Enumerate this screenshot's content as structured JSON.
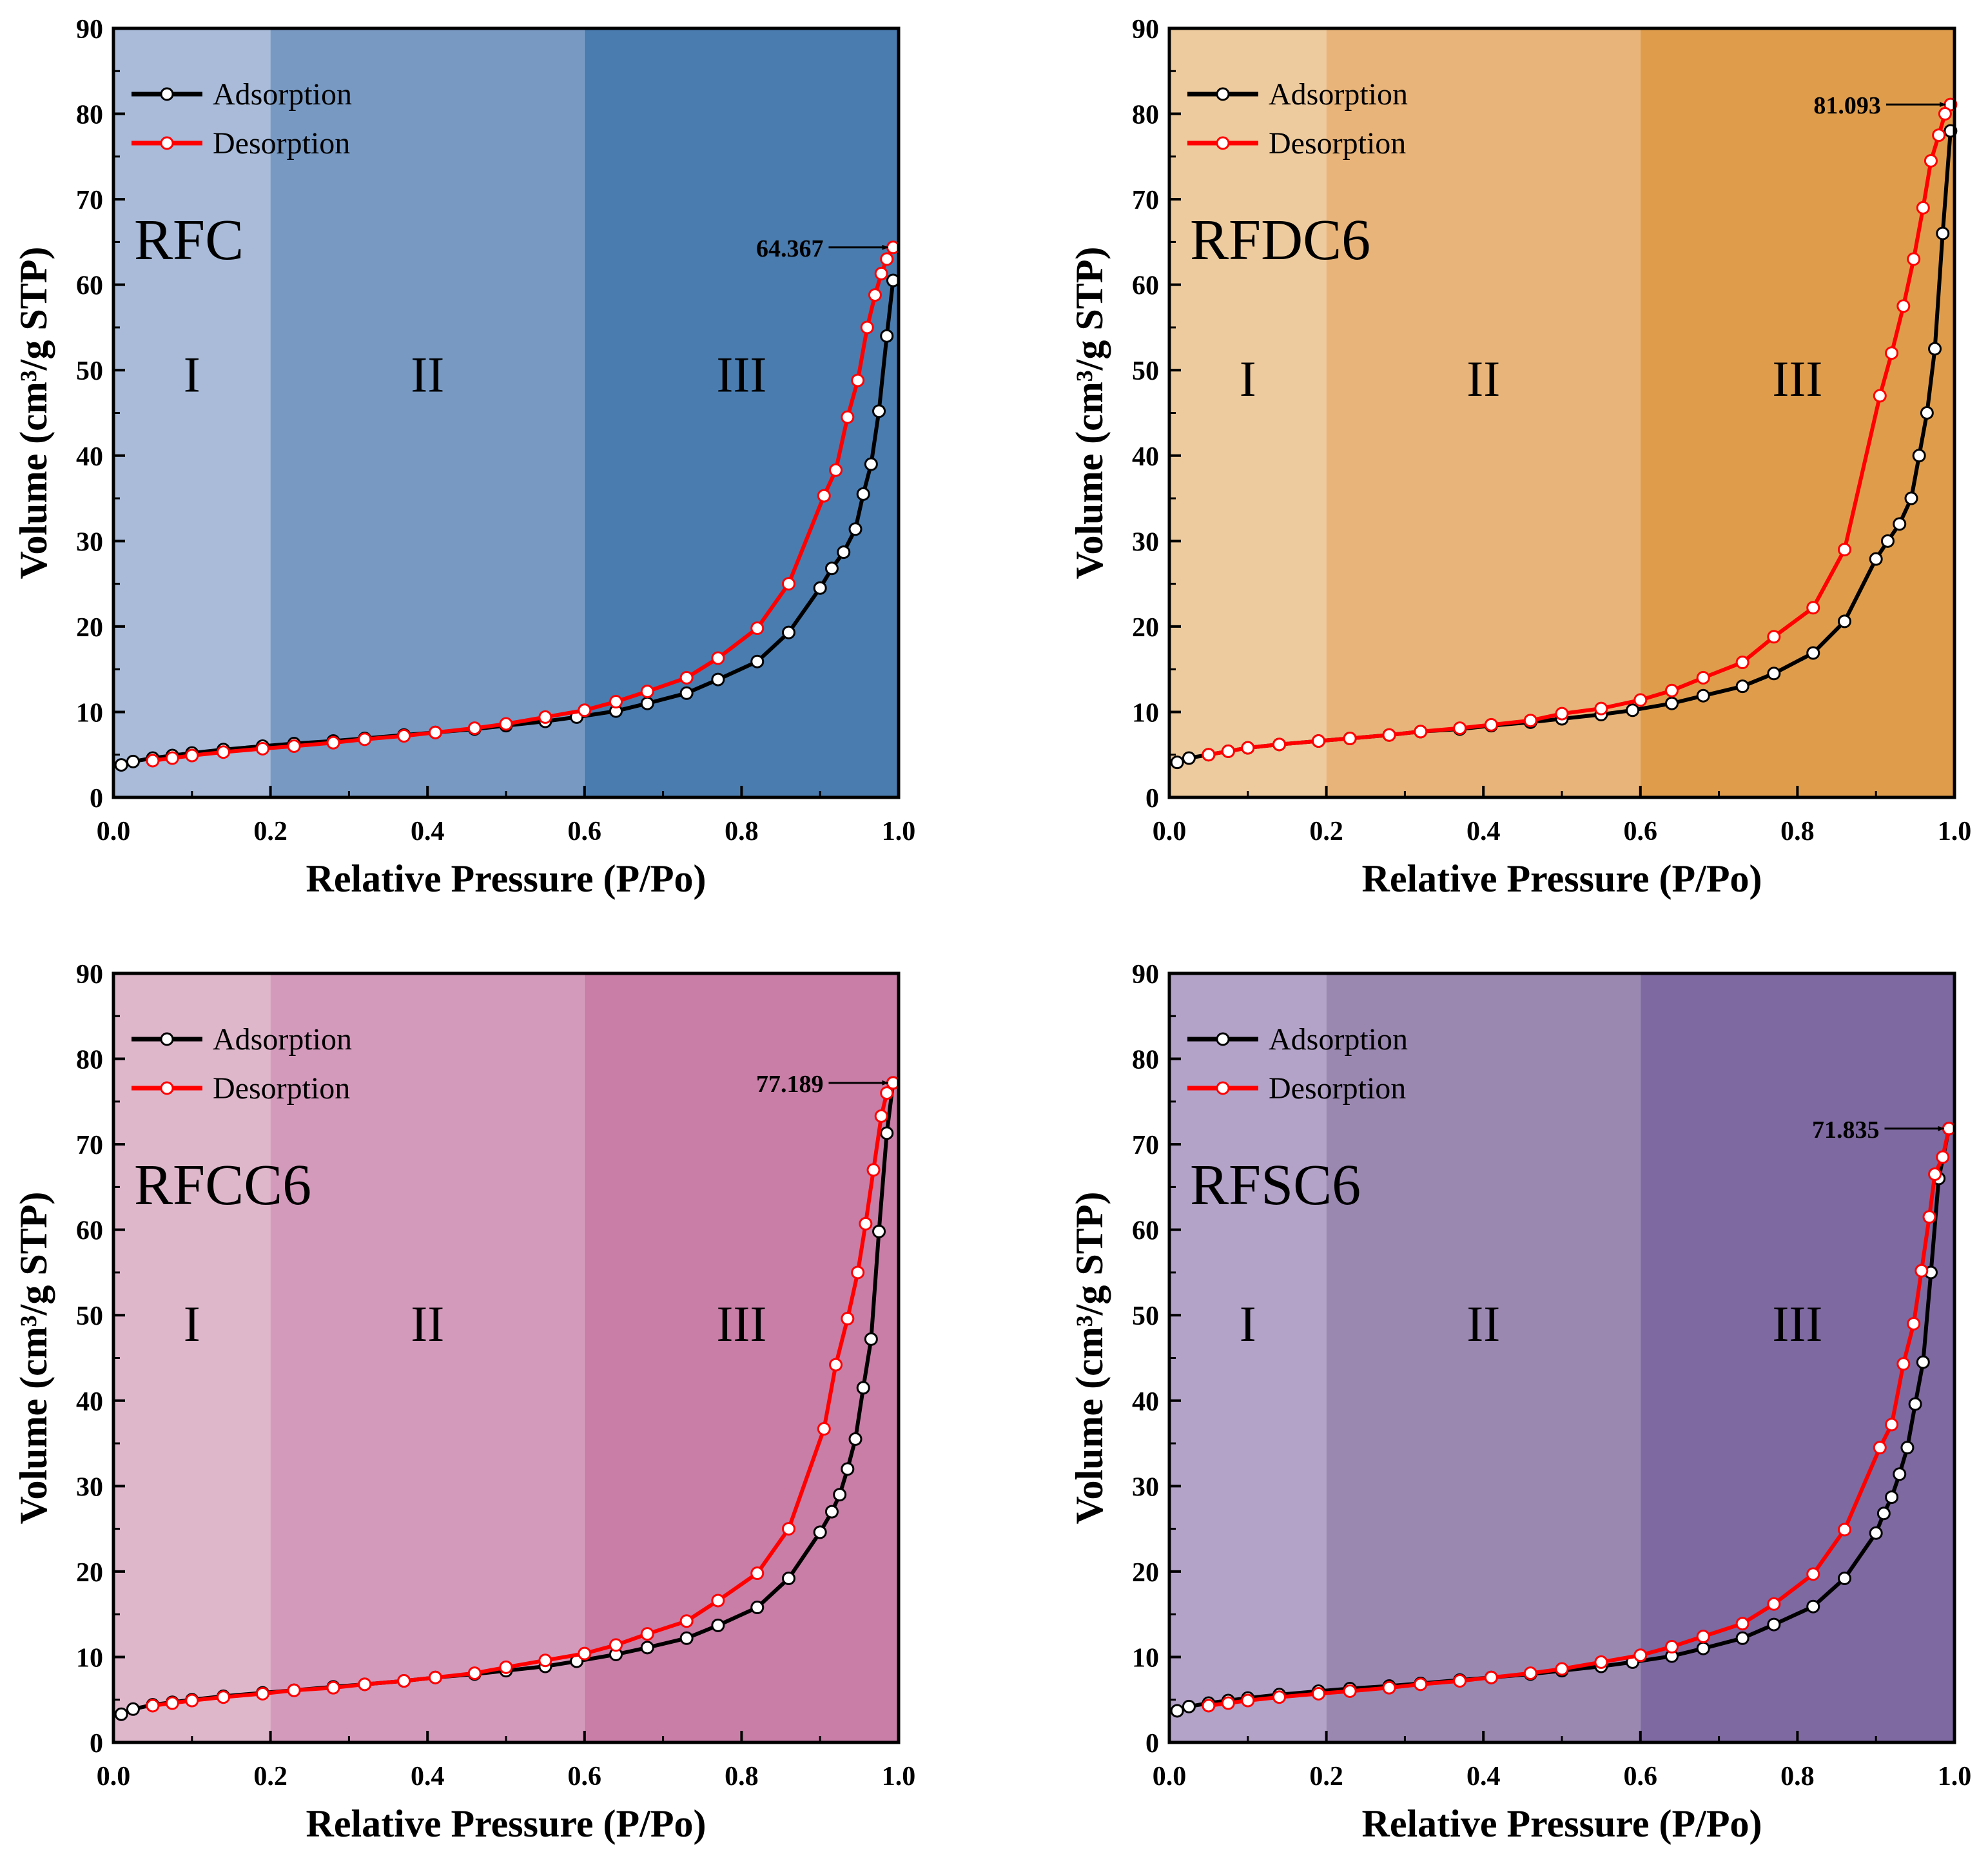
{
  "chart_data": [
    {
      "type": "line",
      "sample": "RFC",
      "region_colors": [
        "#a9bbd9",
        "#7899c2",
        "#4a7caf"
      ],
      "xlabel": "Relative Pressure (P/Po)",
      "ylabel": "Volume (cm³/g STP)",
      "xlim": [
        0,
        1.0
      ],
      "ylim": [
        0,
        90
      ],
      "xticks": [
        "0.0",
        "0.2",
        "0.4",
        "0.6",
        "0.8",
        "1.0"
      ],
      "yticks": [
        "0",
        "10",
        "20",
        "30",
        "40",
        "50",
        "60",
        "70",
        "80",
        "90"
      ],
      "regions": [
        "I",
        "II",
        "III"
      ],
      "region_bounds": [
        0.2,
        0.6
      ],
      "legend": [
        "Adsorption",
        "Desorption"
      ],
      "peak_label": "64.367",
      "peak": [
        0.993,
        64.367
      ],
      "series": [
        {
          "name": "Adsorption",
          "color": "#000000",
          "x": [
            0.01,
            0.025,
            0.05,
            0.075,
            0.1,
            0.14,
            0.19,
            0.23,
            0.28,
            0.32,
            0.37,
            0.41,
            0.46,
            0.5,
            0.55,
            0.59,
            0.64,
            0.68,
            0.73,
            0.77,
            0.82,
            0.86,
            0.9,
            0.915,
            0.93,
            0.945,
            0.955,
            0.965,
            0.975,
            0.985,
            0.993
          ],
          "y": [
            3.8,
            4.2,
            4.6,
            4.9,
            5.2,
            5.6,
            6.0,
            6.3,
            6.6,
            6.9,
            7.3,
            7.6,
            8.0,
            8.4,
            8.9,
            9.4,
            10.1,
            11.0,
            12.2,
            13.8,
            15.9,
            19.3,
            24.5,
            26.8,
            28.7,
            31.4,
            35.5,
            39.0,
            45.2,
            54.0,
            60.5
          ]
        },
        {
          "name": "Desorption",
          "color": "#ff0000",
          "x": [
            0.993,
            0.985,
            0.978,
            0.97,
            0.96,
            0.948,
            0.935,
            0.92,
            0.905,
            0.86,
            0.82,
            0.77,
            0.73,
            0.68,
            0.64,
            0.6,
            0.55,
            0.5,
            0.46,
            0.41,
            0.37,
            0.32,
            0.28,
            0.23,
            0.19,
            0.14,
            0.1,
            0.075,
            0.05
          ],
          "y": [
            64.367,
            63.0,
            61.3,
            58.8,
            55.0,
            48.8,
            44.5,
            38.3,
            35.3,
            25.0,
            19.8,
            16.3,
            14.0,
            12.4,
            11.2,
            10.2,
            9.4,
            8.6,
            8.1,
            7.6,
            7.2,
            6.8,
            6.4,
            6.0,
            5.7,
            5.3,
            4.9,
            4.6,
            4.3
          ]
        }
      ]
    },
    {
      "type": "line",
      "sample": "RFDC6",
      "region_colors": [
        "#eecb9e",
        "#e8b47a",
        "#df9d4c"
      ],
      "xlabel": "Relative Pressure (P/Po)",
      "ylabel": "Volume (cm³/g STP)",
      "xlim": [
        0,
        1.0
      ],
      "ylim": [
        0,
        90
      ],
      "xticks": [
        "0.0",
        "0.2",
        "0.4",
        "0.6",
        "0.8",
        "1.0"
      ],
      "yticks": [
        "0",
        "10",
        "20",
        "30",
        "40",
        "50",
        "60",
        "70",
        "80",
        "90"
      ],
      "regions": [
        "I",
        "II",
        "III"
      ],
      "region_bounds": [
        0.2,
        0.6
      ],
      "legend": [
        "Adsorption",
        "Desorption"
      ],
      "peak_label": "81.093",
      "peak": [
        0.995,
        81.093
      ],
      "series": [
        {
          "name": "Adsorption",
          "color": "#000000",
          "x": [
            0.01,
            0.025,
            0.05,
            0.075,
            0.1,
            0.14,
            0.19,
            0.23,
            0.28,
            0.32,
            0.37,
            0.41,
            0.46,
            0.5,
            0.55,
            0.59,
            0.64,
            0.68,
            0.73,
            0.77,
            0.82,
            0.86,
            0.9,
            0.915,
            0.93,
            0.945,
            0.955,
            0.965,
            0.975,
            0.985,
            0.995
          ],
          "y": [
            4.1,
            4.6,
            5.0,
            5.4,
            5.8,
            6.2,
            6.6,
            6.9,
            7.3,
            7.7,
            8.0,
            8.4,
            8.8,
            9.2,
            9.7,
            10.2,
            11.0,
            11.9,
            13.0,
            14.5,
            16.9,
            20.6,
            27.9,
            30.0,
            32.0,
            35.0,
            40.0,
            45.0,
            52.5,
            66.0,
            78.0
          ]
        },
        {
          "name": "Desorption",
          "color": "#ff0000",
          "x": [
            0.995,
            0.988,
            0.98,
            0.97,
            0.96,
            0.948,
            0.935,
            0.92,
            0.905,
            0.86,
            0.82,
            0.77,
            0.73,
            0.68,
            0.64,
            0.6,
            0.55,
            0.5,
            0.46,
            0.41,
            0.37,
            0.32,
            0.28,
            0.23,
            0.19,
            0.14,
            0.1,
            0.075,
            0.05
          ],
          "y": [
            81.093,
            80.0,
            77.5,
            74.5,
            69.0,
            63.0,
            57.5,
            52.0,
            47.0,
            29.0,
            22.2,
            18.8,
            15.8,
            14.0,
            12.5,
            11.4,
            10.4,
            9.8,
            9.0,
            8.5,
            8.1,
            7.7,
            7.3,
            6.9,
            6.6,
            6.2,
            5.8,
            5.4,
            5.0
          ]
        }
      ]
    },
    {
      "type": "line",
      "sample": "RFCC6",
      "region_colors": [
        "#dfb7cb",
        "#d49abb",
        "#c87ea6"
      ],
      "xlabel": "Relative Pressure (P/Po)",
      "ylabel": "Volume (cm³/g STP)",
      "xlim": [
        0,
        1.0
      ],
      "ylim": [
        0,
        90
      ],
      "xticks": [
        "0.0",
        "0.2",
        "0.4",
        "0.6",
        "0.8",
        "1.0"
      ],
      "yticks": [
        "0",
        "10",
        "20",
        "30",
        "40",
        "50",
        "60",
        "70",
        "80",
        "90"
      ],
      "regions": [
        "I",
        "II",
        "III"
      ],
      "region_bounds": [
        0.2,
        0.6
      ],
      "legend": [
        "Adsorption",
        "Desorption"
      ],
      "peak_label": "77.189",
      "peak": [
        0.993,
        77.189
      ],
      "series": [
        {
          "name": "Adsorption",
          "color": "#000000",
          "x": [
            0.01,
            0.025,
            0.05,
            0.075,
            0.1,
            0.14,
            0.19,
            0.23,
            0.28,
            0.32,
            0.37,
            0.41,
            0.46,
            0.5,
            0.55,
            0.59,
            0.64,
            0.68,
            0.73,
            0.77,
            0.82,
            0.86,
            0.9,
            0.915,
            0.925,
            0.935,
            0.945,
            0.955,
            0.965,
            0.975,
            0.985,
            0.993
          ],
          "y": [
            3.3,
            3.9,
            4.4,
            4.7,
            5.0,
            5.4,
            5.8,
            6.1,
            6.5,
            6.8,
            7.2,
            7.6,
            8.0,
            8.4,
            8.9,
            9.5,
            10.3,
            11.1,
            12.2,
            13.7,
            15.8,
            19.2,
            24.6,
            27.0,
            29.0,
            32.0,
            35.5,
            41.5,
            47.2,
            59.8,
            71.3,
            77.189
          ]
        },
        {
          "name": "Desorption",
          "color": "#ff0000",
          "x": [
            0.993,
            0.985,
            0.978,
            0.968,
            0.958,
            0.948,
            0.935,
            0.92,
            0.905,
            0.86,
            0.82,
            0.77,
            0.73,
            0.68,
            0.64,
            0.6,
            0.55,
            0.5,
            0.46,
            0.41,
            0.37,
            0.32,
            0.28,
            0.23,
            0.19,
            0.14,
            0.1,
            0.075,
            0.05
          ],
          "y": [
            77.189,
            76.0,
            73.3,
            67.0,
            60.7,
            55.0,
            49.6,
            44.2,
            36.7,
            25.0,
            19.8,
            16.6,
            14.2,
            12.7,
            11.4,
            10.4,
            9.6,
            8.8,
            8.1,
            7.6,
            7.2,
            6.8,
            6.4,
            6.1,
            5.7,
            5.3,
            4.9,
            4.6,
            4.3
          ]
        }
      ]
    },
    {
      "type": "line",
      "sample": "RFSC6",
      "region_colors": [
        "#b4a3c8",
        "#9b88b1",
        "#7e69a0"
      ],
      "xlabel": "Relative Pressure (P/Po)",
      "ylabel": "Volume (cm³/g STP)",
      "xlim": [
        0,
        1.0
      ],
      "ylim": [
        0,
        90
      ],
      "xticks": [
        "0.0",
        "0.2",
        "0.4",
        "0.6",
        "0.8",
        "1.0"
      ],
      "yticks": [
        "0",
        "10",
        "20",
        "30",
        "40",
        "50",
        "60",
        "70",
        "80",
        "90"
      ],
      "regions": [
        "I",
        "II",
        "III"
      ],
      "region_bounds": [
        0.2,
        0.6
      ],
      "legend": [
        "Adsorption",
        "Desorption"
      ],
      "peak_label": "71.835",
      "peak": [
        0.993,
        71.835
      ],
      "series": [
        {
          "name": "Adsorption",
          "color": "#000000",
          "x": [
            0.01,
            0.025,
            0.05,
            0.075,
            0.1,
            0.14,
            0.19,
            0.23,
            0.28,
            0.32,
            0.37,
            0.41,
            0.46,
            0.5,
            0.55,
            0.59,
            0.64,
            0.68,
            0.73,
            0.77,
            0.82,
            0.86,
            0.9,
            0.91,
            0.92,
            0.93,
            0.94,
            0.95,
            0.96,
            0.97,
            0.98,
            0.993
          ],
          "y": [
            3.7,
            4.2,
            4.6,
            4.9,
            5.2,
            5.6,
            6.0,
            6.3,
            6.6,
            6.9,
            7.3,
            7.6,
            8.0,
            8.4,
            8.9,
            9.4,
            10.1,
            11.0,
            12.2,
            13.8,
            15.9,
            19.2,
            24.5,
            26.8,
            28.7,
            31.4,
            34.5,
            39.6,
            44.5,
            55.0,
            66.0,
            71.835
          ]
        },
        {
          "name": "Desorption",
          "color": "#ff0000",
          "x": [
            0.993,
            0.985,
            0.975,
            0.968,
            0.958,
            0.948,
            0.935,
            0.92,
            0.905,
            0.86,
            0.82,
            0.77,
            0.73,
            0.68,
            0.64,
            0.6,
            0.55,
            0.5,
            0.46,
            0.41,
            0.37,
            0.32,
            0.28,
            0.23,
            0.19,
            0.14,
            0.1,
            0.075,
            0.05
          ],
          "y": [
            71.835,
            68.5,
            66.5,
            61.5,
            55.2,
            49.0,
            44.3,
            37.2,
            34.5,
            24.9,
            19.7,
            16.2,
            13.9,
            12.4,
            11.2,
            10.2,
            9.4,
            8.6,
            8.1,
            7.6,
            7.2,
            6.8,
            6.4,
            6.0,
            5.7,
            5.3,
            4.9,
            4.6,
            4.3
          ]
        }
      ]
    }
  ]
}
